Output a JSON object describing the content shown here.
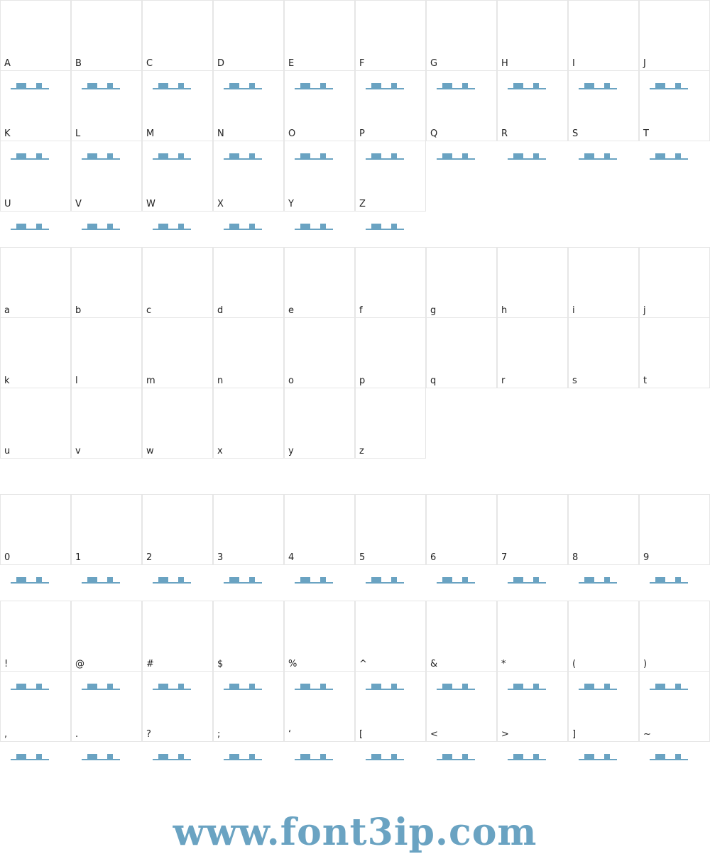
{
  "sections": [
    {
      "chars": [
        "A",
        "B",
        "C",
        "D",
        "E",
        "F",
        "G",
        "H",
        "I",
        "J",
        "K",
        "L",
        "M",
        "N",
        "O",
        "P",
        "Q",
        "R",
        "S",
        "T",
        "U",
        "V",
        "W",
        "X",
        "Y",
        "Z"
      ]
    },
    {
      "chars": [
        "a",
        "b",
        "c",
        "d",
        "e",
        "f",
        "g",
        "h",
        "i",
        "j",
        "k",
        "l",
        "m",
        "n",
        "o",
        "p",
        "q",
        "r",
        "s",
        "t",
        "u",
        "v",
        "w",
        "x",
        "y",
        "z"
      ]
    },
    {
      "chars": [
        "0",
        "1",
        "2",
        "3",
        "4",
        "5",
        "6",
        "7",
        "8",
        "9"
      ]
    },
    {
      "chars": [
        "!",
        "@",
        "#",
        "$",
        "%",
        "^",
        "&",
        "*",
        "(",
        ")",
        ",",
        ".",
        "?",
        ";",
        "‘",
        "[",
        "<",
        ">",
        "]",
        "~"
      ]
    }
  ],
  "footer": "www.font3ip.com"
}
